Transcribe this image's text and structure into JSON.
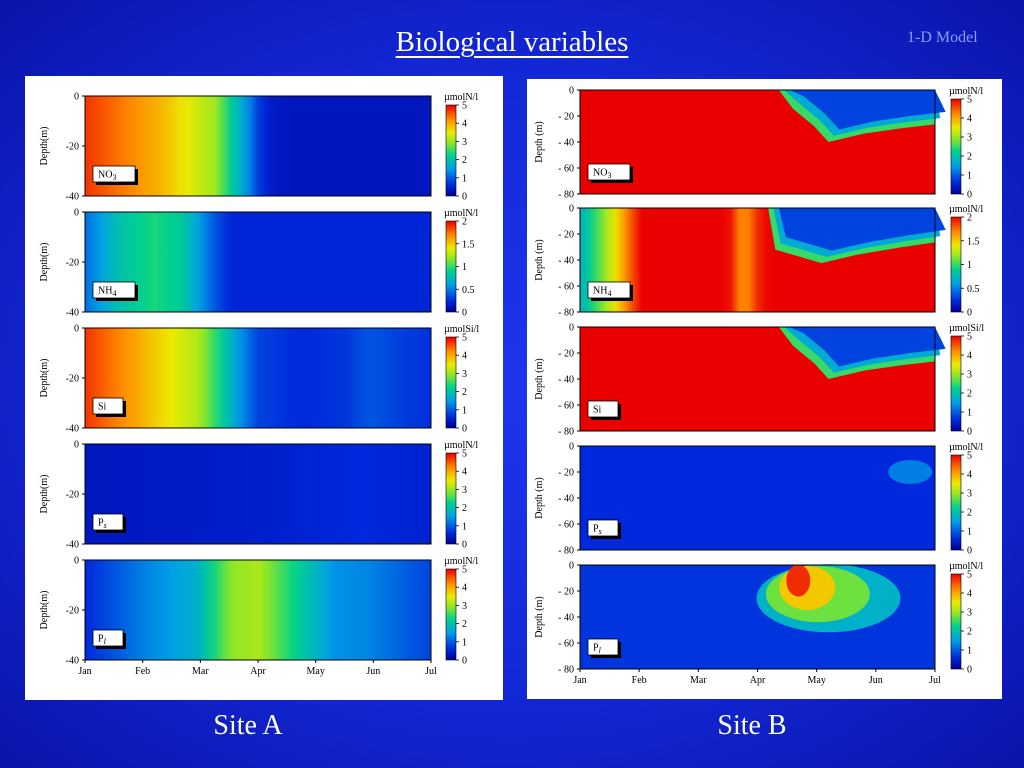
{
  "slide": {
    "title": "Biological variables ",
    "model_label": "1-D Model",
    "site_a_label": "Site A",
    "site_b_label": "Site B"
  },
  "chart_data": [
    {
      "type": "heatmap",
      "site": "Site A",
      "x_ticks": [
        "Jan",
        "Feb",
        "Mar",
        "Apr",
        "May",
        "Jun",
        "Jul"
      ],
      "y_label": "Depth(m)",
      "panels": [
        {
          "variable_label": "NO3",
          "sub": "3",
          "unit": "µmolN/l",
          "y_ticks": [
            "0",
            "-20",
            "-40"
          ],
          "cmax": 5,
          "cbar_ticks": [
            "5",
            "4",
            "3",
            "2",
            "1",
            "0"
          ],
          "profile": [
            [
              0,
              4.7
            ],
            [
              0.22,
              3.9
            ],
            [
              0.38,
              3.0
            ],
            [
              0.42,
              2.2
            ],
            [
              0.47,
              1.4
            ],
            [
              0.49,
              1.0
            ],
            [
              0.51,
              0.55
            ],
            [
              0.56,
              0.35
            ],
            [
              1,
              0.35
            ]
          ]
        },
        {
          "variable_label": "NH4",
          "sub": "4",
          "unit": "µmolN/l",
          "y_ticks": [
            "0",
            "-20",
            "-40"
          ],
          "cmax": 2,
          "cbar_ticks": [
            "2",
            "1.5",
            "1",
            "0.5",
            "0"
          ],
          "profile": [
            [
              0,
              0.45
            ],
            [
              0.1,
              0.8
            ],
            [
              0.2,
              0.95
            ],
            [
              0.28,
              0.85
            ],
            [
              0.33,
              0.6
            ],
            [
              0.37,
              0.4
            ],
            [
              0.42,
              0.22
            ],
            [
              0.6,
              0.22
            ],
            [
              1,
              0.22
            ]
          ]
        },
        {
          "variable_label": "Si",
          "sub": "",
          "unit": "µmolSi/l",
          "y_ticks": [
            "0",
            "-20",
            "-40"
          ],
          "cmax": 5,
          "cbar_ticks": [
            "5",
            "4",
            "3",
            "2",
            "1",
            "0"
          ],
          "profile": [
            [
              0,
              4.7
            ],
            [
              0.15,
              4.0
            ],
            [
              0.33,
              3.1
            ],
            [
              0.38,
              2.4
            ],
            [
              0.45,
              1.4
            ],
            [
              0.5,
              0.8
            ],
            [
              0.62,
              0.6
            ],
            [
              0.75,
              0.7
            ],
            [
              0.82,
              0.95
            ],
            [
              0.92,
              0.75
            ],
            [
              1,
              0.65
            ]
          ]
        },
        {
          "variable_label": "Ps",
          "sub": "s",
          "unit": "µmolN/l",
          "y_ticks": [
            "0",
            "-20",
            "-40"
          ],
          "cmax": 5,
          "cbar_ticks": [
            "5",
            "4",
            "3",
            "2",
            "1",
            "0"
          ],
          "profile": [
            [
              0,
              0.35
            ],
            [
              0.5,
              0.45
            ],
            [
              0.8,
              0.6
            ],
            [
              1,
              0.5
            ]
          ]
        },
        {
          "variable_label": "Pl",
          "sub": "l",
          "unit": "µmolN/l",
          "y_ticks": [
            "0",
            "-20",
            "-40"
          ],
          "cmax": 5,
          "cbar_ticks": [
            "5",
            "4",
            "3",
            "2",
            "1",
            "0"
          ],
          "profile": [
            [
              0,
              0.6
            ],
            [
              0.18,
              1.3
            ],
            [
              0.32,
              1.7
            ],
            [
              0.42,
              2.9
            ],
            [
              0.5,
              3.1
            ],
            [
              0.6,
              2.3
            ],
            [
              0.72,
              1.4
            ],
            [
              0.82,
              1.3
            ],
            [
              1,
              0.8
            ]
          ]
        }
      ]
    },
    {
      "type": "heatmap",
      "site": "Site B",
      "x_ticks": [
        "Jan",
        "Feb",
        "Mar",
        "Apr",
        "May",
        "Jun",
        "Jul"
      ],
      "y_label": "Depth (m)",
      "panels": [
        {
          "variable_label": "NO3",
          "sub": "3",
          "unit": "µmolN/l",
          "y_ticks": [
            "0",
            "- 20",
            "- 40",
            "- 60",
            "- 80"
          ],
          "cmax": 5,
          "cbar_ticks": [
            "5",
            "4",
            "3",
            "2",
            "1",
            "0"
          ],
          "onset": 0.56,
          "mixed_value": 5,
          "surface_value": 0.4,
          "mld": [
            [
              0.56,
              0.0
            ],
            [
              0.6,
              0.18
            ],
            [
              0.66,
              0.35
            ],
            [
              0.7,
              0.5
            ],
            [
              0.8,
              0.42
            ],
            [
              0.9,
              0.37
            ],
            [
              1,
              0.33
            ]
          ]
        },
        {
          "variable_label": "NH4",
          "sub": "4",
          "unit": "µmolN/l",
          "y_ticks": [
            "0",
            "- 20",
            "- 40",
            "- 60",
            "- 80"
          ],
          "cmax": 2,
          "cbar_ticks": [
            "2",
            "1.5",
            "1",
            "0.5",
            "0"
          ],
          "onset": 0.53,
          "mixed_value": 2,
          "surface_value": 0.3,
          "mld": [
            [
              0.53,
              0.0
            ],
            [
              0.55,
              0.4
            ],
            [
              0.6,
              0.45
            ],
            [
              0.68,
              0.53
            ],
            [
              0.78,
              0.45
            ],
            [
              0.9,
              0.38
            ],
            [
              1,
              0.33
            ]
          ]
        },
        {
          "variable_label": "Si",
          "sub": "",
          "unit": "µmolSi/l",
          "y_ticks": [
            "0",
            "- 20",
            "- 40",
            "- 60",
            "- 80"
          ],
          "cmax": 5,
          "cbar_ticks": [
            "5",
            "4",
            "3",
            "2",
            "1",
            "0"
          ],
          "onset": 0.56,
          "mixed_value": 5,
          "surface_value": 0.4,
          "mld": [
            [
              0.56,
              0.0
            ],
            [
              0.6,
              0.18
            ],
            [
              0.66,
              0.35
            ],
            [
              0.7,
              0.5
            ],
            [
              0.8,
              0.42
            ],
            [
              0.9,
              0.37
            ],
            [
              1,
              0.33
            ]
          ]
        },
        {
          "variable_label": "Ps",
          "sub": "s",
          "unit": "µmolN/l",
          "y_ticks": [
            "0",
            "- 20",
            "- 40",
            "- 60",
            "- 80"
          ],
          "cmax": 5,
          "cbar_ticks": [
            "5",
            "4",
            "3",
            "2",
            "1",
            "0"
          ]
        },
        {
          "variable_label": "Pl",
          "sub": "l",
          "unit": "µmolN/l",
          "y_ticks": [
            "0",
            "- 20",
            "- 40",
            "- 60",
            "- 80"
          ],
          "cmax": 5,
          "cbar_ticks": [
            "5",
            "4",
            "3",
            "2",
            "1",
            "0"
          ]
        }
      ]
    }
  ]
}
